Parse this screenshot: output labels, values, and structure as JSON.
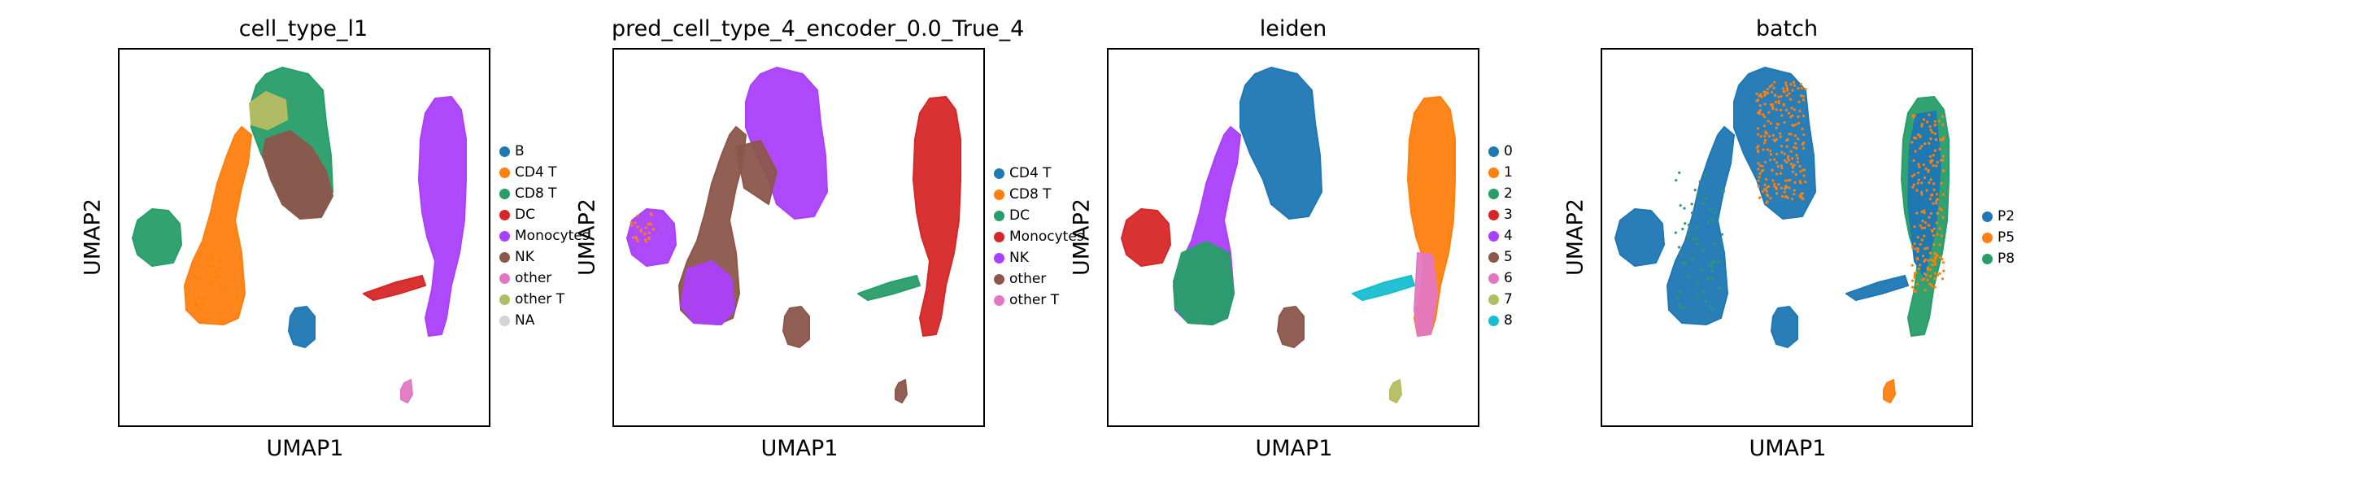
{
  "palette": {
    "blue": "#1f77b4",
    "orange": "#ff7f0e",
    "green": "#279e68",
    "red": "#d62728",
    "purple": "#aa40fc",
    "brown": "#8c564b",
    "pink": "#e377c2",
    "olive": "#b5bd61",
    "cyan": "#17becf",
    "grey": "#d3d3d3"
  },
  "chart_data": [
    {
      "type": "scatter",
      "title": "cell_type_l1",
      "xlabel": "UMAP1",
      "ylabel": "UMAP2",
      "legend_position": "right",
      "legend": [
        {
          "label": "B",
          "color": "#1f77b4"
        },
        {
          "label": "CD4 T",
          "color": "#ff7f0e"
        },
        {
          "label": "CD8 T",
          "color": "#279e68"
        },
        {
          "label": "DC",
          "color": "#d62728"
        },
        {
          "label": "Monocytes",
          "color": "#aa40fc"
        },
        {
          "label": "NK",
          "color": "#8c564b"
        },
        {
          "label": "other",
          "color": "#e377c2"
        },
        {
          "label": "other T",
          "color": "#b5bd61"
        },
        {
          "label": "NA",
          "color": "#d3d3d3"
        }
      ]
    },
    {
      "type": "scatter",
      "title": "pred_cell_type_4_encoder_0.0_True_4",
      "xlabel": "UMAP1",
      "ylabel": "UMAP2",
      "legend_position": "right",
      "legend": [
        {
          "label": "CD4 T",
          "color": "#1f77b4"
        },
        {
          "label": "CD8 T",
          "color": "#ff7f0e"
        },
        {
          "label": "DC",
          "color": "#279e68"
        },
        {
          "label": "Monocytes",
          "color": "#d62728"
        },
        {
          "label": "NK",
          "color": "#aa40fc"
        },
        {
          "label": "other",
          "color": "#8c564b"
        },
        {
          "label": "other T",
          "color": "#e377c2"
        }
      ]
    },
    {
      "type": "scatter",
      "title": "leiden",
      "xlabel": "UMAP1",
      "ylabel": "UMAP2",
      "legend_position": "right",
      "legend": [
        {
          "label": "0",
          "color": "#1f77b4"
        },
        {
          "label": "1",
          "color": "#ff7f0e"
        },
        {
          "label": "2",
          "color": "#279e68"
        },
        {
          "label": "3",
          "color": "#d62728"
        },
        {
          "label": "4",
          "color": "#aa40fc"
        },
        {
          "label": "5",
          "color": "#8c564b"
        },
        {
          "label": "6",
          "color": "#e377c2"
        },
        {
          "label": "7",
          "color": "#b5bd61"
        },
        {
          "label": "8",
          "color": "#17becf"
        }
      ]
    },
    {
      "type": "scatter",
      "title": "batch",
      "xlabel": "UMAP1",
      "ylabel": "UMAP2",
      "legend_position": "right",
      "legend": [
        {
          "label": "P2",
          "color": "#1f77b4"
        },
        {
          "label": "P5",
          "color": "#ff7f0e"
        },
        {
          "label": "P8",
          "color": "#279e68"
        }
      ]
    }
  ]
}
